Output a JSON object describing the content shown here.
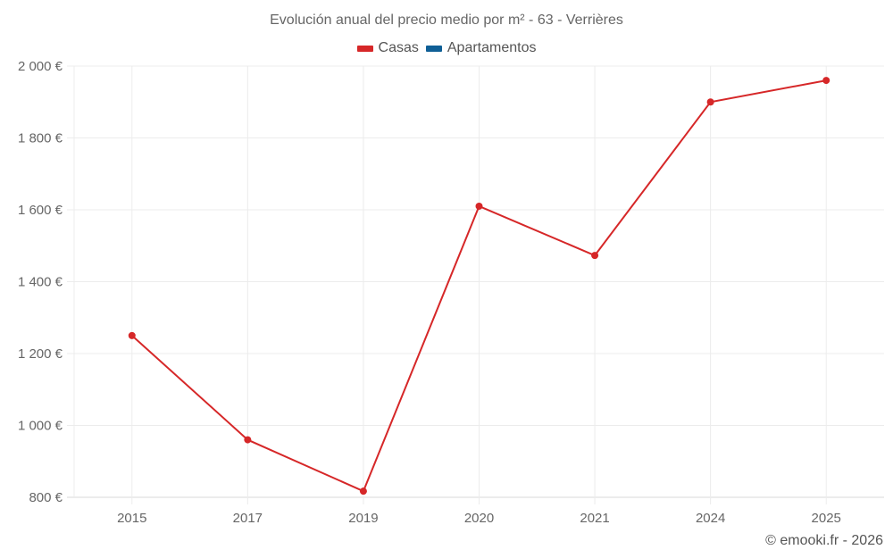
{
  "title": "Evolución anual del precio medio por m² - 63 - Verrières",
  "legend": [
    {
      "label": "Casas",
      "color": "#d62728"
    },
    {
      "label": "Apartamentos",
      "color": "#0f5f96"
    }
  ],
  "credit": "© emooki.fr - 2026",
  "chart_data": {
    "type": "line",
    "title": "Evolución anual del precio medio por m² - 63 - Verrières",
    "xlabel": "",
    "ylabel": "",
    "categories": [
      "2015",
      "2017",
      "2019",
      "2020",
      "2021",
      "2024",
      "2025"
    ],
    "series": [
      {
        "name": "Casas",
        "color": "#d62728",
        "values": [
          1250,
          960,
          817,
          1610,
          1473,
          1900,
          1960
        ]
      },
      {
        "name": "Apartamentos",
        "color": "#0f5f96",
        "values": []
      }
    ],
    "ylim": [
      800,
      2000
    ],
    "yticks": [
      800,
      1000,
      1200,
      1400,
      1600,
      1800,
      2000
    ],
    "ytick_labels": [
      "800 €",
      "1 000 €",
      "1 200 €",
      "1 400 €",
      "1 600 €",
      "1 800 €",
      "2 000 €"
    ],
    "grid": true,
    "legend_position": "top"
  }
}
